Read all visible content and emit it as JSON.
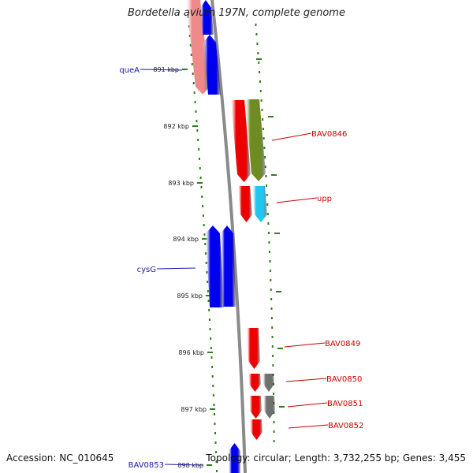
{
  "header": {
    "title": "Bordetella avium 197N, complete genome"
  },
  "footer": {
    "accession": "Accession: NC_010645",
    "summary": "Topology: circular; Length: 3,732,255 bp; Genes: 3,455"
  },
  "colors": {
    "backbone": "#8a8a8a",
    "ticks": "#2e7d1e",
    "blue_label": "#1a1aa8",
    "red_label": "#cc0000"
  },
  "ruler": {
    "unit": "kbp",
    "labels": [
      "891 kbp",
      "892 kbp",
      "893 kbp",
      "894 kbp",
      "895 kbp",
      "896 kbp",
      "897 kbp",
      "898 kbp"
    ]
  },
  "genes": [
    {
      "id": "g-top-pink",
      "strand": "reverse",
      "color": "#f08a8a",
      "label": ""
    },
    {
      "id": "g-top-blue1",
      "strand": "forward",
      "color": "#0000ee",
      "label": ""
    },
    {
      "id": "g-queA",
      "strand": "forward",
      "color": "#0000ee",
      "label": "queA"
    },
    {
      "id": "g-BAV0846-red",
      "strand": "reverse",
      "color": "#ee0000",
      "label": ""
    },
    {
      "id": "g-BAV0846-olive",
      "strand": "reverse",
      "color": "#6e8c23",
      "label": "BAV0846"
    },
    {
      "id": "g-upp-red",
      "strand": "reverse",
      "color": "#ee0000",
      "label": ""
    },
    {
      "id": "g-upp-cyan",
      "strand": "reverse",
      "color": "#1ec8f0",
      "label": "upp"
    },
    {
      "id": "g-cysG-a",
      "strand": "forward",
      "color": "#0000ee",
      "label": "cysG"
    },
    {
      "id": "g-cysG-b",
      "strand": "forward",
      "color": "#0000ee",
      "label": ""
    },
    {
      "id": "g-BAV0849",
      "strand": "reverse",
      "color": "#ee0000",
      "label": "BAV0849"
    },
    {
      "id": "g-BAV0850",
      "strand": "reverse",
      "color": "#ee0000",
      "label": "BAV0850"
    },
    {
      "id": "g-BAV0850-gray",
      "strand": "reverse",
      "color": "#707070",
      "label": ""
    },
    {
      "id": "g-BAV0851",
      "strand": "reverse",
      "color": "#ee0000",
      "label": "BAV0851"
    },
    {
      "id": "g-BAV0851-gray",
      "strand": "reverse",
      "color": "#707070",
      "label": ""
    },
    {
      "id": "g-BAV0852",
      "strand": "reverse",
      "color": "#ee0000",
      "label": "BAV0852"
    },
    {
      "id": "g-BAV0853",
      "strand": "forward",
      "color": "#0000ee",
      "label": "BAV0853"
    }
  ]
}
